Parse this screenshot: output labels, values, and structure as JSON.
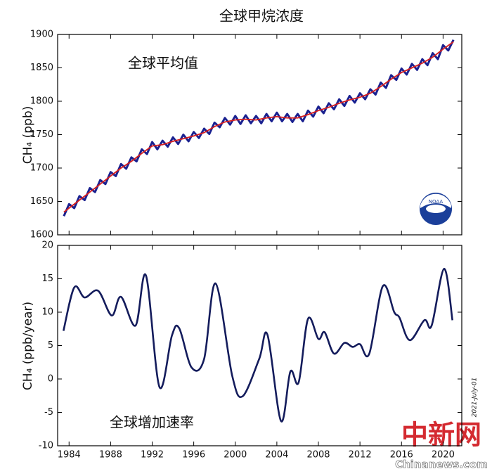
{
  "chart_data": [
    {
      "type": "line",
      "title": "全球甲烷浓度",
      "annotation": "全球平均值",
      "y_label": "CH₄ (ppb)",
      "xlim": [
        1982.9,
        2021.8
      ],
      "xticks": [
        1984,
        1988,
        1992,
        1996,
        2000,
        2004,
        2008,
        2012,
        2016,
        2020
      ],
      "ylim": [
        1600,
        1900
      ],
      "yticks": [
        1600,
        1650,
        1700,
        1750,
        1800,
        1850,
        1900
      ],
      "logo_text": "NOAA",
      "series": [
        {
          "color": "#1a2190",
          "x": [
            1983.5,
            1984,
            1984.5,
            1985,
            1985.5,
            1986,
            1986.5,
            1987,
            1987.5,
            1988,
            1988.5,
            1989,
            1989.5,
            1990,
            1990.5,
            1991,
            1991.5,
            1992,
            1992.5,
            1993,
            1993.5,
            1994,
            1994.5,
            1995,
            1995.5,
            1996,
            1996.5,
            1997,
            1997.5,
            1998,
            1998.5,
            1999,
            1999.5,
            2000,
            2000.5,
            2001,
            2001.5,
            2002,
            2002.5,
            2003,
            2003.5,
            2004,
            2004.5,
            2005,
            2005.5,
            2006,
            2006.5,
            2007,
            2007.5,
            2008,
            2008.5,
            2009,
            2009.5,
            2010,
            2010.5,
            2011,
            2011.5,
            2012,
            2012.5,
            2013,
            2013.5,
            2014,
            2014.5,
            2015,
            2015.5,
            2016,
            2016.5,
            2017,
            2017.5,
            2018,
            2018.5,
            2019,
            2019.5,
            2020,
            2020.5,
            2021
          ],
          "values": [
            1628,
            1646,
            1640,
            1658,
            1652,
            1670,
            1664,
            1682,
            1676,
            1694,
            1688,
            1706,
            1699,
            1716,
            1710,
            1728,
            1721,
            1739,
            1728,
            1741,
            1732,
            1746,
            1736,
            1750,
            1740,
            1754,
            1745,
            1759,
            1751,
            1768,
            1761,
            1775,
            1765,
            1778,
            1766,
            1779,
            1767,
            1778,
            1767,
            1781,
            1770,
            1783,
            1770,
            1781,
            1769,
            1781,
            1770,
            1786,
            1777,
            1792,
            1782,
            1797,
            1788,
            1803,
            1793,
            1808,
            1798,
            1812,
            1803,
            1818,
            1810,
            1828,
            1820,
            1839,
            1832,
            1849,
            1840,
            1856,
            1847,
            1863,
            1854,
            1872,
            1863,
            1884,
            1876,
            1892
          ]
        },
        {
          "color": "#d81e1e",
          "x": [
            1983.5,
            1984,
            1985,
            1986,
            1987,
            1988,
            1989,
            1990,
            1991,
            1992,
            1993,
            1994,
            1995,
            1996,
            1997,
            1998,
            1999,
            2000,
            2001,
            2002,
            2003,
            2004,
            2005,
            2006,
            2007,
            2008,
            2009,
            2010,
            2011,
            2012,
            2013,
            2014,
            2015,
            2016,
            2017,
            2018,
            2019,
            2020,
            2021
          ],
          "values": [
            1634,
            1640,
            1652,
            1664,
            1676,
            1688,
            1700,
            1710,
            1722,
            1733,
            1735,
            1740,
            1744,
            1748,
            1753,
            1762,
            1769,
            1772,
            1773,
            1772,
            1775,
            1777,
            1775,
            1775,
            1780,
            1786,
            1791,
            1797,
            1802,
            1806,
            1812,
            1822,
            1833,
            1843,
            1850,
            1857,
            1866,
            1878,
            1889
          ]
        }
      ]
    },
    {
      "type": "line",
      "annotation": "全球增加速率",
      "y_label": "CH₄ (ppb/year)",
      "color": "#141c5c",
      "xlim": [
        1982.9,
        2021.8
      ],
      "xticks": [
        1984,
        1988,
        1992,
        1996,
        2000,
        2004,
        2008,
        2012,
        2016,
        2020
      ],
      "ylim": [
        -10,
        20
      ],
      "yticks": [
        -10,
        -5,
        0,
        5,
        10,
        15,
        20
      ],
      "x": [
        1983.46,
        1984.5,
        1985.5,
        1986.8,
        1988.1,
        1989.0,
        1990.4,
        1991.4,
        1992.7,
        1993.9,
        1994.6,
        1995.8,
        1997.0,
        1998.1,
        1999.7,
        2000.7,
        2002.3,
        2003.1,
        2004.4,
        2005.3,
        2006.1,
        2007.0,
        2008.0,
        2008.6,
        2009.5,
        2010.5,
        2011.3,
        2012.0,
        2012.9,
        2014.2,
        2015.3,
        2015.8,
        2016.8,
        2018.2,
        2018.9,
        2020.1,
        2020.9
      ],
      "values": [
        7.2,
        13.7,
        12.2,
        13.2,
        9.5,
        12.3,
        8.0,
        15.5,
        -1.2,
        6.5,
        7.6,
        1.7,
        3.0,
        14.3,
        0.5,
        -2.6,
        3.0,
        6.6,
        -6.3,
        1.1,
        -0.5,
        9.0,
        6.0,
        7.0,
        3.8,
        5.4,
        4.8,
        5.2,
        3.8,
        13.9,
        10.0,
        9.2,
        5.8,
        8.8,
        8.0,
        16.5,
        8.8
      ],
      "side_note": "2021-July-01"
    }
  ],
  "watermark": {
    "logo": "中新网",
    "site": "Chinanews.com"
  }
}
